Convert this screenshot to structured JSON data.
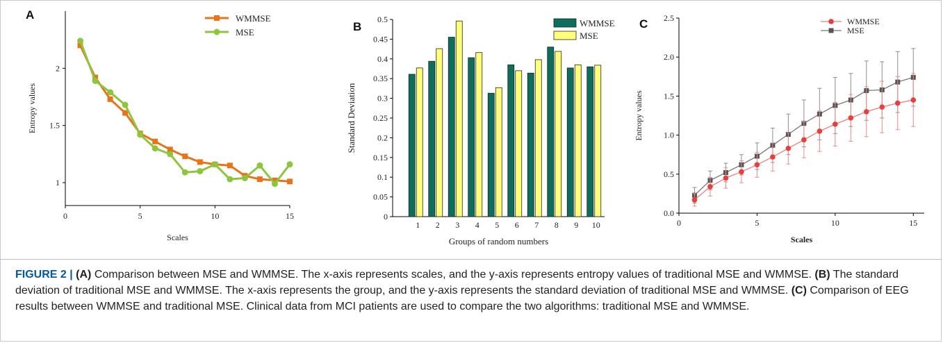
{
  "figure": {
    "caption": {
      "label": "FIGURE 2 |",
      "segments": [
        {
          "bold": "(A)",
          "text": " Comparison between MSE and WMMSE. The x-axis represents scales, and the y-axis represents entropy values of traditional MSE and WMMSE. "
        },
        {
          "bold": "(B)",
          "text": " The standard deviation of traditional MSE and WMMSE. The x-axis represents the group, and the y-axis represents the standard deviation of traditional MSE and WMMSE. "
        },
        {
          "bold": "(C)",
          "text": " Comparison of EEG results between WMMSE and traditional MSE. Clinical data from MCI patients are used to compare the two algorithms: traditional MSE and WMMSE."
        }
      ]
    }
  },
  "chart_data": [
    {
      "panel": "A",
      "type": "line",
      "xlabel": "Scales",
      "ylabel": "Entropy values",
      "xlim": [
        0,
        15
      ],
      "ylim": [
        0.8,
        2.5
      ],
      "xticks": [
        0,
        5,
        10,
        15
      ],
      "yticks": [
        1,
        1.5,
        2
      ],
      "ytick_labels": [
        "1",
        "1.5",
        "2"
      ],
      "grid": false,
      "legend": "top-right",
      "x": [
        1,
        2,
        3,
        4,
        5,
        6,
        7,
        8,
        9,
        10,
        11,
        12,
        13,
        14,
        15
      ],
      "series": [
        {
          "name": "WMMSE",
          "color": "#e8731a",
          "marker": "square",
          "values": [
            2.2,
            1.92,
            1.73,
            1.61,
            1.43,
            1.36,
            1.29,
            1.23,
            1.18,
            1.16,
            1.15,
            1.06,
            1.03,
            1.02,
            1.01
          ]
        },
        {
          "name": "MSE",
          "color": "#8cc63f",
          "marker": "circle",
          "values": [
            2.24,
            1.89,
            1.79,
            1.68,
            1.42,
            1.3,
            1.25,
            1.09,
            1.1,
            1.16,
            1.03,
            1.04,
            1.15,
            0.99,
            1.16
          ]
        }
      ]
    },
    {
      "panel": "B",
      "type": "bar",
      "xlabel": "Groups of random numbers",
      "ylabel": "Standard Deviation",
      "ylim": [
        0,
        0.5
      ],
      "yticks": [
        0,
        0.05,
        0.1,
        0.15,
        0.2,
        0.25,
        0.3,
        0.35,
        0.4,
        0.45,
        0.5
      ],
      "ytick_labels": [
        "0",
        "0.05",
        "0.1",
        "0.15",
        "0.2",
        "0.25",
        "0.3",
        "0.35",
        "0.4",
        "0.45",
        "0.5"
      ],
      "grid": false,
      "legend": "top-right",
      "categories": [
        "1",
        "2",
        "3",
        "4",
        "5",
        "6",
        "7",
        "8",
        "9",
        "10"
      ],
      "series": [
        {
          "name": "WMMSE",
          "color": "#0e6e5c",
          "values": [
            0.361,
            0.394,
            0.455,
            0.403,
            0.313,
            0.385,
            0.364,
            0.43,
            0.377,
            0.38
          ]
        },
        {
          "name": "MSE",
          "color": "#ffff7a",
          "values": [
            0.377,
            0.426,
            0.496,
            0.416,
            0.327,
            0.37,
            0.398,
            0.419,
            0.385,
            0.384
          ]
        }
      ]
    },
    {
      "panel": "C",
      "type": "line",
      "xlabel": "Scales",
      "ylabel": "Entropy values",
      "xlim": [
        0,
        15.7
      ],
      "ylim": [
        0,
        2.5
      ],
      "xticks": [
        0,
        5,
        10,
        15
      ],
      "yticks": [
        0,
        0.5,
        1,
        1.5,
        2,
        2.5
      ],
      "ytick_labels": [
        "0.0",
        "0.5",
        "1.0",
        "1.5",
        "2.0",
        "2.5"
      ],
      "grid": false,
      "legend": "top-right",
      "x": [
        1,
        2,
        3,
        4,
        5,
        6,
        7,
        8,
        9,
        10,
        11,
        12,
        13,
        14,
        15
      ],
      "series": [
        {
          "name": "WMMSE",
          "color": "#e5403c",
          "marker": "circle",
          "values": [
            0.17,
            0.34,
            0.45,
            0.53,
            0.62,
            0.72,
            0.83,
            0.94,
            1.05,
            1.14,
            1.22,
            1.3,
            1.36,
            1.41,
            1.45
          ],
          "errors": [
            0.08,
            0.12,
            0.13,
            0.14,
            0.16,
            0.18,
            0.2,
            0.23,
            0.26,
            0.28,
            0.3,
            0.32,
            0.33,
            0.34,
            0.34
          ]
        },
        {
          "name": "MSE",
          "color": "#555555",
          "marker": "square",
          "values": [
            0.23,
            0.42,
            0.52,
            0.62,
            0.73,
            0.87,
            1.01,
            1.15,
            1.27,
            1.38,
            1.45,
            1.57,
            1.58,
            1.68,
            1.74
          ],
          "errors": [
            0.1,
            0.12,
            0.12,
            0.13,
            0.17,
            0.22,
            0.26,
            0.3,
            0.33,
            0.36,
            0.34,
            0.38,
            0.36,
            0.39,
            0.37
          ]
        }
      ]
    }
  ]
}
